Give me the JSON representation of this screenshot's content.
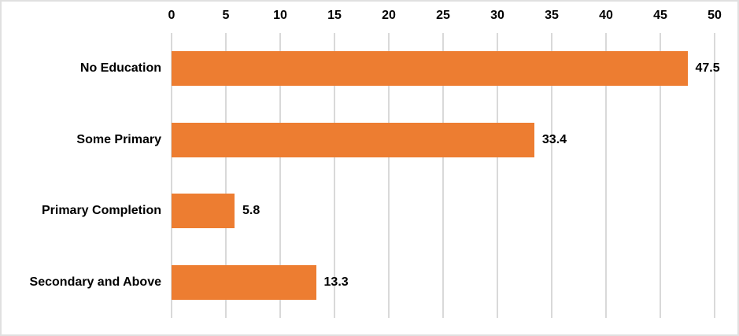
{
  "colors": {
    "bar": "#ED7D31",
    "gridline": "#D9D9D9",
    "label_text": "#000000",
    "background": "#FFFFFF",
    "frame_border": "#E0E0E0"
  },
  "chart_data": {
    "type": "bar",
    "orientation": "horizontal",
    "title": "",
    "xlabel": "",
    "ylabel": "",
    "categories": [
      "No Education",
      "Some Primary",
      "Primary Completion",
      "Secondary and Above"
    ],
    "values": [
      47.5,
      33.4,
      5.8,
      13.3
    ],
    "data_labels": [
      "47.5",
      "33.4",
      "5.8",
      "13.3"
    ],
    "xlim": [
      0,
      50
    ],
    "x_ticks": [
      0,
      5,
      10,
      15,
      20,
      25,
      30,
      35,
      40,
      45,
      50
    ],
    "x_tick_labels": [
      "0",
      "5",
      "10",
      "15",
      "20",
      "25",
      "30",
      "35",
      "40",
      "45",
      "50"
    ],
    "axis_position": "top",
    "grid": "vertical",
    "legend": "none"
  }
}
